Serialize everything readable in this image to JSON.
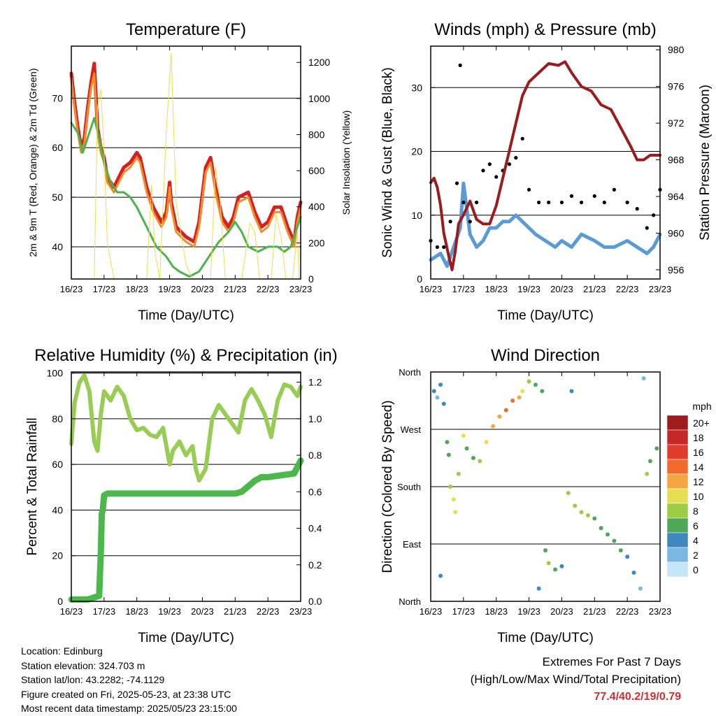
{
  "colors": {
    "temp_2m": "#d42020",
    "temp_9m": "#f08c2a",
    "dewpoint": "#4db34d",
    "insolation": "#f2dc4a",
    "wind": "#5b9bd5",
    "gust": "#000000",
    "pressure": "#9b1c1c",
    "rh": "#99cc55",
    "precip": "#4cb84c"
  },
  "x_ticks": [
    "16/23",
    "17/23",
    "18/23",
    "19/23",
    "20/23",
    "21/23",
    "22/23",
    "23/23"
  ],
  "chart_data": [
    {
      "type": "line",
      "title": "Temperature (F)",
      "xlabel": "Time (Day/UTC)",
      "ylabel": "2m & 9m T (Red, Orange) & 2m Td (Green)",
      "ylabel_right": "Solar Insolation (Yellow)",
      "x_range": [
        0,
        7
      ],
      "ylim": [
        33.5,
        80.5
      ],
      "y_ticks": [
        40,
        50,
        60,
        70
      ],
      "ylim_right": [
        0,
        1290
      ],
      "y_ticks_right": [
        0,
        200,
        400,
        600,
        800,
        1000,
        1200
      ],
      "grid": "horizontal",
      "series": [
        {
          "name": "2m T",
          "color_key": "temp_2m",
          "axis": "left",
          "x": [
            0,
            0.1,
            0.2,
            0.3,
            0.4,
            0.5,
            0.6,
            0.7,
            0.8,
            0.9,
            1.0,
            1.1,
            1.2,
            1.3,
            1.45,
            1.6,
            1.8,
            2.0,
            2.1,
            2.3,
            2.5,
            2.75,
            2.9,
            3.0,
            3.05,
            3.2,
            3.5,
            3.75,
            3.9,
            4.1,
            4.25,
            4.4,
            4.6,
            4.8,
            4.95,
            5.1,
            5.4,
            5.6,
            5.8,
            6.0,
            6.2,
            6.4,
            6.6,
            6.8,
            6.9,
            7.0
          ],
          "y": [
            75,
            69,
            64,
            60,
            62,
            68,
            73,
            77,
            64,
            60,
            58,
            54,
            53,
            52,
            54,
            56,
            57,
            59,
            58,
            52,
            48,
            45,
            47,
            53,
            49,
            44,
            42,
            41,
            45,
            56,
            58,
            52,
            46,
            44,
            46,
            50,
            51,
            47,
            44,
            45,
            48,
            48,
            44,
            41,
            46,
            49
          ]
        },
        {
          "name": "9m T",
          "color_key": "temp_9m",
          "axis": "left",
          "x": [
            0,
            0.1,
            0.2,
            0.3,
            0.4,
            0.5,
            0.6,
            0.7,
            0.8,
            0.9,
            1.0,
            1.1,
            1.2,
            1.3,
            1.45,
            1.6,
            1.8,
            2.0,
            2.1,
            2.3,
            2.5,
            2.75,
            2.9,
            3.0,
            3.05,
            3.2,
            3.5,
            3.75,
            3.9,
            4.1,
            4.25,
            4.4,
            4.6,
            4.8,
            4.95,
            5.1,
            5.4,
            5.6,
            5.8,
            6.0,
            6.2,
            6.4,
            6.6,
            6.8,
            6.9,
            7.0
          ],
          "y": [
            74,
            68,
            63,
            59,
            61,
            67,
            72,
            75,
            63,
            59,
            57,
            53,
            52,
            51,
            53,
            55,
            56,
            58,
            57,
            51,
            47,
            44,
            46,
            52,
            48,
            43,
            41,
            40,
            44,
            55,
            57,
            51,
            45,
            43,
            45,
            49,
            50,
            46,
            43,
            44,
            47,
            47,
            43,
            40,
            45,
            48
          ]
        },
        {
          "name": "2m Td",
          "color_key": "dewpoint",
          "axis": "left",
          "x": [
            0,
            0.2,
            0.35,
            0.5,
            0.7,
            0.85,
            1.0,
            1.2,
            1.4,
            1.6,
            1.8,
            2.0,
            2.3,
            2.6,
            2.9,
            3.1,
            3.3,
            3.6,
            3.9,
            4.2,
            4.5,
            4.8,
            5.0,
            5.2,
            5.4,
            5.7,
            6.0,
            6.3,
            6.5,
            6.7,
            6.9,
            7.0
          ],
          "y": [
            65,
            63,
            59,
            62,
            66,
            62,
            57,
            53,
            51,
            51,
            50,
            48,
            44,
            40,
            38,
            36,
            35,
            34,
            35,
            38,
            41,
            43,
            45,
            43,
            40,
            39,
            40,
            40,
            39,
            40,
            44,
            46
          ]
        },
        {
          "name": "Solar Insolation",
          "color_key": "insolation",
          "axis": "right",
          "x": [
            0.7,
            0.8,
            0.9,
            1.0,
            1.1,
            1.3,
            2.3,
            2.45,
            2.55,
            2.7,
            2.9,
            3.05,
            3.2,
            3.5,
            3.7,
            4.25,
            4.4,
            4.55,
            4.7,
            5.2,
            5.45,
            5.6,
            5.75,
            6.1,
            6.25,
            6.4,
            6.55,
            6.75,
            6.9,
            6.95
          ],
          "y": [
            0,
            950,
            1050,
            700,
            200,
            0,
            0,
            520,
            150,
            0,
            820,
            1250,
            420,
            80,
            0,
            0,
            620,
            420,
            0,
            0,
            310,
            260,
            0,
            0,
            360,
            230,
            0,
            0,
            270,
            0
          ]
        }
      ]
    },
    {
      "type": "line",
      "title": "Winds (mph) & Pressure (mb)",
      "xlabel": "Time (Day/UTC)",
      "ylabel": "Sonic Wind & Gust (Blue, Black)",
      "ylabel_right": "Station Pressure (Maroon)",
      "x_range": [
        0,
        7
      ],
      "ylim": [
        0,
        36.5
      ],
      "y_ticks": [
        0,
        10,
        20,
        30
      ],
      "ylim_right": [
        955,
        980.4
      ],
      "y_ticks_right": [
        956,
        960,
        964,
        968,
        972,
        976,
        980
      ],
      "grid": "horizontal",
      "series": [
        {
          "name": "Sonic Wind",
          "color_key": "wind",
          "axis": "left",
          "x": [
            0,
            0.3,
            0.5,
            0.7,
            0.9,
            1.0,
            1.2,
            1.4,
            1.6,
            1.8,
            2.0,
            2.2,
            2.4,
            2.6,
            2.8,
            3.0,
            3.2,
            3.5,
            3.8,
            4.0,
            4.3,
            4.6,
            5.0,
            5.3,
            5.6,
            6.0,
            6.3,
            6.6,
            6.8,
            7.0
          ],
          "y": [
            3,
            4,
            2,
            5,
            8,
            15,
            7,
            5,
            6,
            8,
            8,
            9,
            9,
            10,
            9,
            8,
            7,
            6,
            5,
            6,
            5,
            7,
            6,
            5,
            5,
            6,
            5,
            4,
            5,
            7
          ]
        },
        {
          "name": "Gust",
          "color_key": "gust",
          "axis": "left",
          "style": "points",
          "x": [
            0,
            0.2,
            0.4,
            0.6,
            0.8,
            0.9,
            1.0,
            1.2,
            1.4,
            1.6,
            1.8,
            2.0,
            2.2,
            2.4,
            2.6,
            2.8,
            3.0,
            3.3,
            3.6,
            4.0,
            4.3,
            4.6,
            5.0,
            5.3,
            5.6,
            6.0,
            6.3,
            6.6,
            6.8,
            7.0
          ],
          "y": [
            6,
            5,
            5,
            9,
            15,
            33.5,
            12,
            9,
            12,
            17,
            18,
            16,
            17,
            18,
            19,
            22,
            14,
            12,
            12,
            12,
            13,
            12,
            13,
            12,
            14,
            12,
            11,
            8,
            10,
            14
          ]
        },
        {
          "name": "Station Pressure",
          "color_key": "pressure",
          "axis": "right",
          "x": [
            0,
            0.1,
            0.2,
            0.3,
            0.4,
            0.55,
            0.65,
            0.75,
            0.85,
            1.0,
            1.2,
            1.4,
            1.6,
            1.8,
            2.0,
            2.2,
            2.4,
            2.6,
            2.8,
            3.0,
            3.3,
            3.6,
            3.9,
            4.1,
            4.3,
            4.6,
            4.9,
            5.2,
            5.5,
            5.8,
            6.1,
            6.3,
            6.5,
            6.7,
            7.0
          ],
          "y": [
            965.5,
            966,
            965,
            963,
            960,
            957.5,
            956,
            958,
            961,
            962,
            963.5,
            961.5,
            961,
            961,
            963,
            966,
            969,
            972,
            975,
            976.5,
            977.5,
            978.5,
            978.3,
            978.7,
            977.5,
            976,
            975.5,
            974,
            973.5,
            971.5,
            969.5,
            968,
            968,
            968.5,
            968.5
          ]
        }
      ]
    },
    {
      "type": "line",
      "title": "Relative Humidity (%) & Precipitation (in)",
      "xlabel": "Time (Day/UTC)",
      "ylabel": "Percent & Total Rainfall",
      "x_range": [
        0,
        7
      ],
      "ylim": [
        0,
        100.5
      ],
      "y_ticks": [
        0,
        20,
        40,
        60,
        80,
        100
      ],
      "ylim_right": [
        0,
        1.256
      ],
      "y_ticks_right": [
        "0.0",
        "0.2",
        "0.4",
        "0.6",
        "0.8",
        "1.0",
        "1.2"
      ],
      "grid": "horizontal",
      "series": [
        {
          "name": "Relative Humidity",
          "color_key": "rh",
          "axis": "left",
          "x": [
            0,
            0.1,
            0.25,
            0.4,
            0.55,
            0.7,
            0.8,
            0.9,
            1.0,
            1.2,
            1.4,
            1.6,
            1.8,
            2.0,
            2.2,
            2.4,
            2.6,
            2.8,
            3.0,
            3.1,
            3.3,
            3.5,
            3.7,
            3.8,
            3.9,
            4.1,
            4.3,
            4.5,
            4.7,
            4.9,
            5.1,
            5.3,
            5.5,
            5.7,
            5.9,
            6.1,
            6.3,
            6.5,
            6.7,
            6.9,
            7.0
          ],
          "y": [
            69,
            87,
            96,
            99,
            92,
            70,
            66,
            82,
            92,
            88,
            94,
            90,
            80,
            75,
            76,
            73,
            72,
            76,
            60,
            66,
            70,
            64,
            68,
            58,
            53,
            58,
            80,
            86,
            82,
            78,
            74,
            88,
            93,
            88,
            82,
            72,
            88,
            95,
            94,
            90,
            94
          ]
        },
        {
          "name": "Total Rainfall",
          "color_key": "precip",
          "axis": "right",
          "x": [
            0,
            0.5,
            0.85,
            0.9,
            0.93,
            0.96,
            1.0,
            1.1,
            2.0,
            3.0,
            4.0,
            5.0,
            5.2,
            5.4,
            5.6,
            5.8,
            6.0,
            6.4,
            6.8,
            7.0
          ],
          "y": [
            0.01,
            0.01,
            0.03,
            0.27,
            0.48,
            0.5,
            0.58,
            0.59,
            0.59,
            0.59,
            0.59,
            0.59,
            0.6,
            0.63,
            0.66,
            0.68,
            0.68,
            0.69,
            0.7,
            0.77
          ]
        }
      ]
    },
    {
      "type": "scatter",
      "title": "Wind Direction",
      "xlabel": "Time (Day/UTC)",
      "ylabel": "Direction (Colored By Speed)",
      "x_range": [
        0,
        7
      ],
      "y_categories": [
        "North",
        "East",
        "South",
        "West",
        "North"
      ],
      "ylim": [
        0,
        360
      ],
      "grid": "horizontal",
      "colorbar": {
        "title": "mph",
        "labels": [
          "20+",
          "18",
          "16",
          "14",
          "12",
          "10",
          "8",
          "6",
          "4",
          "2",
          "0"
        ],
        "colors": [
          "#9e1c1c",
          "#c62828",
          "#e03c2c",
          "#f26a2c",
          "#f5a542",
          "#e8de52",
          "#9fcc45",
          "#4fa85a",
          "#3f87bf",
          "#7ab8e2",
          "#c4e6f7"
        ]
      },
      "points": [
        {
          "x": 0.1,
          "y": 330,
          "s": 3
        },
        {
          "x": 0.2,
          "y": 320,
          "s": 2
        },
        {
          "x": 0.3,
          "y": 340,
          "s": 4
        },
        {
          "x": 0.4,
          "y": 310,
          "s": 3
        },
        {
          "x": 0.5,
          "y": 250,
          "s": 5
        },
        {
          "x": 0.55,
          "y": 230,
          "s": 6
        },
        {
          "x": 0.6,
          "y": 180,
          "s": 8
        },
        {
          "x": 0.7,
          "y": 160,
          "s": 10
        },
        {
          "x": 0.75,
          "y": 140,
          "s": 9
        },
        {
          "x": 0.85,
          "y": 200,
          "s": 7
        },
        {
          "x": 1.0,
          "y": 260,
          "s": 9
        },
        {
          "x": 1.1,
          "y": 240,
          "s": 6
        },
        {
          "x": 1.3,
          "y": 225,
          "s": 6
        },
        {
          "x": 1.5,
          "y": 220,
          "s": 7
        },
        {
          "x": 1.7,
          "y": 250,
          "s": 9
        },
        {
          "x": 1.9,
          "y": 275,
          "s": 11
        },
        {
          "x": 2.1,
          "y": 290,
          "s": 12
        },
        {
          "x": 2.3,
          "y": 300,
          "s": 13
        },
        {
          "x": 2.5,
          "y": 315,
          "s": 13
        },
        {
          "x": 2.7,
          "y": 320,
          "s": 12
        },
        {
          "x": 2.8,
          "y": 330,
          "s": 9
        },
        {
          "x": 3.0,
          "y": 345,
          "s": 8
        },
        {
          "x": 3.2,
          "y": 340,
          "s": 6
        },
        {
          "x": 3.4,
          "y": 330,
          "s": 6
        },
        {
          "x": 3.5,
          "y": 80,
          "s": 6
        },
        {
          "x": 3.6,
          "y": 60,
          "s": 7
        },
        {
          "x": 3.8,
          "y": 50,
          "s": 5
        },
        {
          "x": 4.0,
          "y": 55,
          "s": 4
        },
        {
          "x": 4.2,
          "y": 170,
          "s": 7
        },
        {
          "x": 4.4,
          "y": 150,
          "s": 8
        },
        {
          "x": 4.6,
          "y": 140,
          "s": 7
        },
        {
          "x": 4.8,
          "y": 135,
          "s": 8
        },
        {
          "x": 5.0,
          "y": 130,
          "s": 6
        },
        {
          "x": 5.2,
          "y": 115,
          "s": 6
        },
        {
          "x": 5.4,
          "y": 105,
          "s": 5
        },
        {
          "x": 5.6,
          "y": 95,
          "s": 5
        },
        {
          "x": 5.8,
          "y": 80,
          "s": 5
        },
        {
          "x": 6.0,
          "y": 70,
          "s": 4
        },
        {
          "x": 6.2,
          "y": 45,
          "s": 3
        },
        {
          "x": 6.4,
          "y": 20,
          "s": 2
        },
        {
          "x": 6.6,
          "y": 200,
          "s": 7
        },
        {
          "x": 6.7,
          "y": 220,
          "s": 6
        },
        {
          "x": 6.9,
          "y": 240,
          "s": 5
        },
        {
          "x": 0.3,
          "y": 40,
          "s": 3
        },
        {
          "x": 3.3,
          "y": 20,
          "s": 4
        },
        {
          "x": 4.3,
          "y": 330,
          "s": 3
        },
        {
          "x": 6.5,
          "y": 350,
          "s": 2
        }
      ]
    }
  ],
  "info": {
    "location": "Location: Edinburg",
    "elevation": "Station elevation: 324.703 m",
    "latlon": "Station lat/lon: 43.2282; -74.1129",
    "created": "Figure created on Fri, 2025-05-23, at 23:38 UTC",
    "recent": "Most recent data timestamp: 2025/05/23 23:15:00"
  },
  "extremes": {
    "title": "Extremes For Past 7 Days",
    "subtitle": "(High/Low/Max Wind/Total Precipitation)",
    "values": "77.4/40.2/19/0.79"
  }
}
